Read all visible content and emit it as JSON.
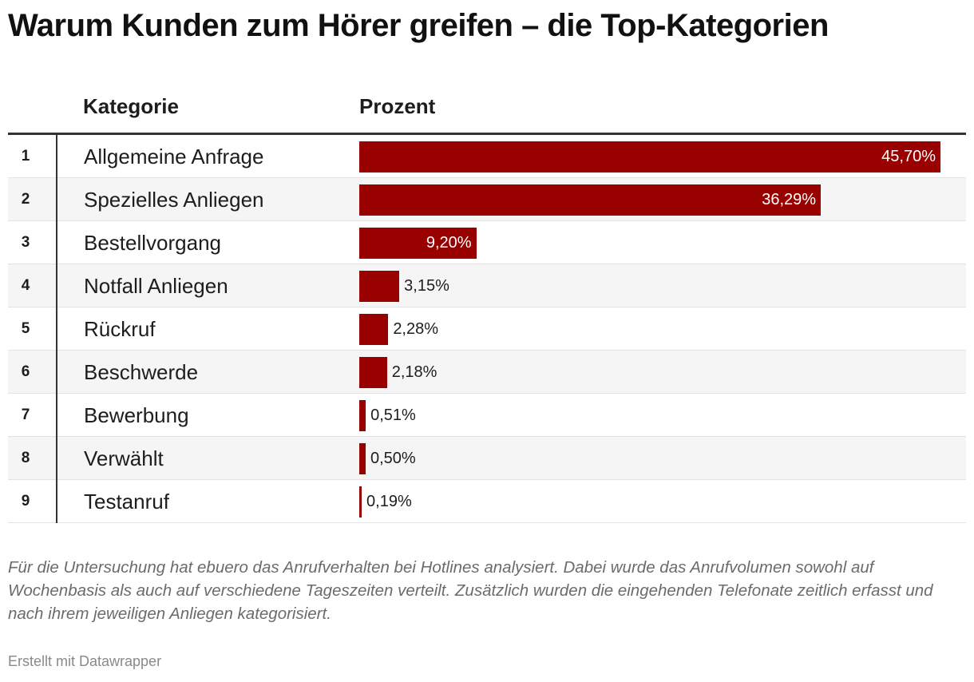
{
  "title": "Warum Kunden zum Hörer greifen – die Top-Kategorien",
  "columns": {
    "category": "Kategorie",
    "percent": "Prozent"
  },
  "chart_data": {
    "type": "table",
    "title": "Warum Kunden zum Hörer greifen – die Top-Kategorien",
    "columns": [
      "Kategorie",
      "Prozent"
    ],
    "rows": [
      {
        "rank": "1",
        "category": "Allgemeine Anfrage",
        "value": 45.7,
        "label": "45,70%"
      },
      {
        "rank": "2",
        "category": "Spezielles Anliegen",
        "value": 36.29,
        "label": "36,29%"
      },
      {
        "rank": "3",
        "category": "Bestellvorgang",
        "value": 9.2,
        "label": "9,20%"
      },
      {
        "rank": "4",
        "category": "Notfall Anliegen",
        "value": 3.15,
        "label": "3,15%"
      },
      {
        "rank": "5",
        "category": "Rückruf",
        "value": 2.28,
        "label": "2,28%"
      },
      {
        "rank": "6",
        "category": "Beschwerde",
        "value": 2.18,
        "label": "2,18%"
      },
      {
        "rank": "7",
        "category": "Bewerbung",
        "value": 0.51,
        "label": "0,51%"
      },
      {
        "rank": "8",
        "category": "Verwählt",
        "value": 0.5,
        "label": "0,50%"
      },
      {
        "rank": "9",
        "category": "Testanruf",
        "value": 0.19,
        "label": "0,19%"
      }
    ],
    "bar_color": "#990000"
  },
  "notes": "Für die Untersuchung hat ebuero das Anrufverhalten bei Hotlines analysiert. Dabei wurde das Anrufvolumen sowohl auf Wochenbasis als auch auf verschiedene Tageszeiten verteilt. Zusätzlich wurden die eingehenden Telefonate zeitlich erfasst und nach ihrem jeweiligen Anliegen kategorisiert.",
  "credit": "Erstellt mit Datawrapper"
}
